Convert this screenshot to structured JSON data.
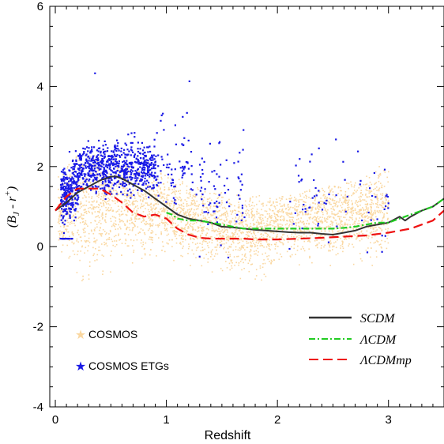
{
  "chart_data": {
    "type": "scatter",
    "xlabel": "Redshift",
    "ylabel": "(B_J - r^+)",
    "ylabel_parts": {
      "open": "(",
      "b": "B",
      "b_sub": "J",
      "mid": " - ",
      "r": "r",
      "r_sup": "+",
      "close": ")"
    },
    "xlim": [
      -0.05,
      3.5
    ],
    "ylim": [
      -4,
      6
    ],
    "x_ticks": [
      0,
      1,
      2,
      3
    ],
    "x_tick_labels": [
      "0",
      "1",
      "2",
      "3"
    ],
    "y_ticks": [
      -4,
      -2,
      0,
      2,
      4,
      6
    ],
    "y_tick_labels": [
      "-4",
      "-2",
      "0",
      "2",
      "4",
      "6"
    ],
    "grid": false,
    "scatter_series": [
      {
        "name": "COSMOS",
        "color": "#FAD7A0",
        "marker": "star",
        "envelope": {
          "z": [
            0.02,
            0.1,
            0.2,
            0.3,
            0.4,
            0.5,
            0.6,
            0.7,
            0.8,
            0.9,
            1.0,
            1.1,
            1.2,
            1.3,
            1.4,
            1.5,
            1.6,
            1.7,
            1.8,
            1.9,
            2.0,
            2.2,
            2.4,
            2.6,
            2.8,
            3.0
          ],
          "lo": [
            -0.2,
            -0.6,
            -1.0,
            -1.0,
            -0.8,
            -0.6,
            -0.5,
            -0.5,
            -0.5,
            -0.4,
            -0.4,
            -0.5,
            -0.6,
            -0.6,
            -0.7,
            -0.8,
            -0.9,
            -1.0,
            -0.9,
            -0.8,
            -0.6,
            -0.5,
            -0.5,
            -0.5,
            -0.6,
            -0.6
          ],
          "hi": [
            1.8,
            2.0,
            2.4,
            2.6,
            2.5,
            2.4,
            2.2,
            2.1,
            2.0,
            1.9,
            1.8,
            1.7,
            1.6,
            1.5,
            1.4,
            1.4,
            1.3,
            1.3,
            1.3,
            1.3,
            1.3,
            1.4,
            1.5,
            1.6,
            1.8,
            2.2
          ]
        }
      },
      {
        "name": "COSMOS ETGs",
        "color": "#1A1AE6",
        "marker": "star",
        "clusters": [
          {
            "z_range": [
              0.04,
              0.2
            ],
            "mean": 1.2,
            "spread": 0.35,
            "n": 260
          },
          {
            "z_range": [
              0.2,
              0.9
            ],
            "mean": 2.0,
            "spread": 0.3,
            "n": 700
          },
          {
            "z_range": [
              0.9,
              1.25
            ],
            "mean": 2.0,
            "spread": 0.6,
            "n": 70
          },
          {
            "z_range": [
              1.25,
              1.7
            ],
            "mean": 1.5,
            "spread": 0.75,
            "n": 70
          },
          {
            "z_range": [
              2.1,
              3.0
            ],
            "mean": 1.2,
            "spread": 0.6,
            "n": 65
          }
        ],
        "low_row": {
          "z_range": [
            0.03,
            0.16
          ],
          "y": 0.22,
          "n": 22
        },
        "outliers": [
          [
            0.35,
            4.35
          ],
          [
            1.2,
            4.15
          ],
          [
            0.95,
            3.3
          ],
          [
            1.55,
            -0.25
          ]
        ]
      }
    ],
    "line_series": [
      {
        "name": "SCDM",
        "color": "#333333",
        "dash": "solid",
        "x": [
          0.0,
          0.1,
          0.2,
          0.3,
          0.4,
          0.5,
          0.55,
          0.6,
          0.7,
          0.8,
          0.9,
          1.0,
          1.1,
          1.2,
          1.3,
          1.4,
          1.5,
          1.6,
          1.7,
          1.8,
          1.9,
          2.0,
          2.1,
          2.2,
          2.3,
          2.4,
          2.5,
          2.6,
          2.7,
          2.8,
          2.9,
          3.0,
          3.1,
          3.15,
          3.2,
          3.3,
          3.4,
          3.5
        ],
        "y": [
          0.9,
          1.1,
          1.35,
          1.5,
          1.65,
          1.75,
          1.75,
          1.7,
          1.55,
          1.4,
          1.2,
          1.0,
          0.8,
          0.7,
          0.65,
          0.6,
          0.5,
          0.48,
          0.45,
          0.42,
          0.4,
          0.38,
          0.36,
          0.35,
          0.35,
          0.32,
          0.3,
          0.35,
          0.4,
          0.5,
          0.55,
          0.6,
          0.75,
          0.65,
          0.75,
          0.9,
          1.0,
          1.2
        ]
      },
      {
        "name": "ΛCDM",
        "color": "#22CC22",
        "dash": "dashdot",
        "x": [
          1.0,
          1.05,
          1.1,
          1.2,
          1.3,
          1.4,
          1.5,
          1.6,
          1.7,
          1.8,
          1.9,
          2.0,
          2.1,
          2.2,
          2.3,
          2.4,
          2.5,
          2.6,
          2.7,
          2.8,
          2.9,
          3.0,
          3.1,
          3.2,
          3.3,
          3.4,
          3.5
        ],
        "y": [
          0.85,
          0.8,
          0.7,
          0.65,
          0.65,
          0.6,
          0.55,
          0.5,
          0.45,
          0.45,
          0.45,
          0.45,
          0.45,
          0.45,
          0.45,
          0.45,
          0.45,
          0.47,
          0.5,
          0.55,
          0.6,
          0.6,
          0.7,
          0.8,
          0.9,
          1.0,
          1.2
        ]
      },
      {
        "name": "ΛCDMmp",
        "color": "#EE1111",
        "dash": "dashed",
        "x": [
          0.0,
          0.1,
          0.2,
          0.3,
          0.4,
          0.5,
          0.6,
          0.7,
          0.8,
          0.9,
          1.0,
          1.1,
          1.2,
          1.3,
          1.4,
          1.5,
          1.6,
          1.7,
          1.8,
          1.9,
          2.0,
          2.2,
          2.4,
          2.6,
          2.8,
          3.0,
          3.2,
          3.4,
          3.5
        ],
        "y": [
          0.9,
          1.25,
          1.45,
          1.45,
          1.45,
          1.3,
          1.1,
          0.85,
          0.75,
          0.8,
          0.7,
          0.45,
          0.3,
          0.22,
          0.2,
          0.2,
          0.2,
          0.2,
          0.18,
          0.18,
          0.18,
          0.2,
          0.22,
          0.25,
          0.28,
          0.35,
          0.45,
          0.65,
          0.9
        ]
      }
    ],
    "legend_placement": "lower-right",
    "legend": [
      {
        "label": "SCDM",
        "style": "solid",
        "color": "#333333"
      },
      {
        "label": "ΛCDM",
        "style": "dashdot",
        "color": "#22CC22"
      },
      {
        "label": "ΛCDMmp",
        "style": "dashed",
        "color": "#EE1111"
      }
    ],
    "marker_legend_placement": "lower-left",
    "marker_legend": [
      {
        "label": "COSMOS",
        "color": "#FAD7A0"
      },
      {
        "label": "COSMOS ETGs",
        "color": "#1A1AE6"
      }
    ]
  }
}
